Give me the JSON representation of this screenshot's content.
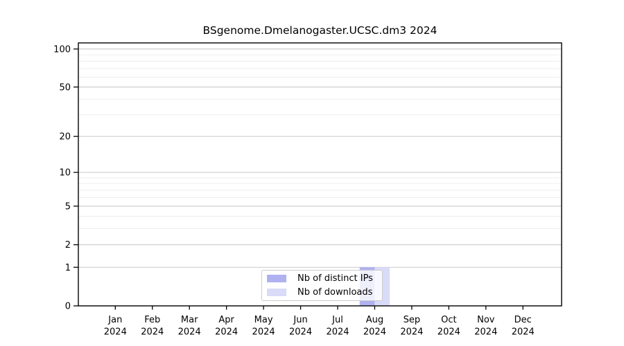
{
  "figure": {
    "title": "BSgenome.Dmelanogaster.UCSC.dm3 2024"
  },
  "chart_data": {
    "type": "bar",
    "title": "BSgenome.Dmelanogaster.UCSC.dm3 2024",
    "x": {
      "categories": [
        "Jan",
        "Feb",
        "Mar",
        "Apr",
        "May",
        "Jun",
        "Jul",
        "Aug",
        "Sep",
        "Oct",
        "Nov",
        "Dec"
      ],
      "year_label": "2024"
    },
    "series": [
      {
        "name": "Nb of distinct IPs",
        "color": "#afb1f0",
        "values": [
          0,
          0,
          0,
          0,
          0,
          0,
          0,
          1,
          0,
          0,
          0,
          0
        ]
      },
      {
        "name": "Nb of downloads",
        "color": "#d9dbf8",
        "values": [
          0,
          0,
          0,
          0,
          0,
          0,
          0,
          1,
          0,
          0,
          0,
          0
        ]
      }
    ],
    "y_axis": {
      "scale": "log1p",
      "major_ticks": [
        0,
        1,
        2,
        5,
        10,
        20,
        50,
        100
      ],
      "minor_ticks": [
        3,
        4,
        6,
        7,
        8,
        9,
        30,
        40,
        60,
        70,
        80,
        90
      ],
      "range": [
        0,
        112
      ]
    },
    "legend": {
      "position": "inside-bottom-center"
    },
    "grid": "horizontal",
    "colors": {
      "axis": "#000000",
      "grid_major": "#c9c9c9",
      "grid_minor": "#ededed",
      "tick_label": "#000000"
    }
  }
}
